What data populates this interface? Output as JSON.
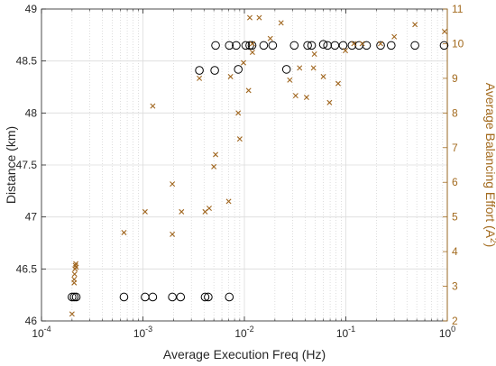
{
  "chart_data": {
    "type": "scatter",
    "title": "",
    "xlabel": "Average Execution Freq (Hz)",
    "xscale": "log",
    "xlim": [
      0.0001,
      1
    ],
    "xticks": [
      {
        "value": 0.0001,
        "base": "10",
        "exp": "-4"
      },
      {
        "value": 0.001,
        "base": "10",
        "exp": "-3"
      },
      {
        "value": 0.01,
        "base": "10",
        "exp": "-2"
      },
      {
        "value": 0.1,
        "base": "10",
        "exp": "-1"
      },
      {
        "value": 1,
        "base": "10",
        "exp": "0"
      }
    ],
    "ylabel_left": "Distance (km)",
    "ylim_left": [
      46,
      49
    ],
    "yticks_left": [
      "46",
      "46.5",
      "47",
      "47.5",
      "48",
      "48.5",
      "49"
    ],
    "ylabel_right": "Average Balancing Effort (A",
    "ylabel_right_sup": "2",
    "ylabel_right_suffix": ")",
    "ylim_right": [
      2,
      11
    ],
    "yticks_right": [
      "2",
      "3",
      "4",
      "5",
      "6",
      "7",
      "8",
      "9",
      "10",
      "11"
    ],
    "grid": true,
    "legend": "none",
    "series": [
      {
        "axis": "left",
        "marker": "circle",
        "color": "#000000",
        "points": [
          [
            0.0002,
            46.23
          ],
          [
            0.00021,
            46.23
          ],
          [
            0.00022,
            46.23
          ],
          [
            0.00065,
            46.23
          ],
          [
            0.00105,
            46.23
          ],
          [
            0.00125,
            46.23
          ],
          [
            0.00195,
            46.23
          ],
          [
            0.00235,
            46.23
          ],
          [
            0.0041,
            46.23
          ],
          [
            0.0044,
            46.23
          ],
          [
            0.0071,
            46.23
          ],
          [
            0.0036,
            48.41
          ],
          [
            0.0051,
            48.41
          ],
          [
            0.0087,
            48.42
          ],
          [
            0.026,
            48.42
          ],
          [
            0.0052,
            48.65
          ],
          [
            0.0071,
            48.65
          ],
          [
            0.0083,
            48.65
          ],
          [
            0.0103,
            48.65
          ],
          [
            0.0113,
            48.65
          ],
          [
            0.0119,
            48.65
          ],
          [
            0.0155,
            48.65
          ],
          [
            0.019,
            48.65
          ],
          [
            0.031,
            48.65
          ],
          [
            0.042,
            48.65
          ],
          [
            0.046,
            48.65
          ],
          [
            0.06,
            48.66
          ],
          [
            0.066,
            48.65
          ],
          [
            0.078,
            48.65
          ],
          [
            0.094,
            48.65
          ],
          [
            0.115,
            48.65
          ],
          [
            0.135,
            48.65
          ],
          [
            0.16,
            48.65
          ],
          [
            0.22,
            48.65
          ],
          [
            0.28,
            48.65
          ],
          [
            0.48,
            48.65
          ],
          [
            0.93,
            48.65
          ]
        ]
      },
      {
        "axis": "right",
        "marker": "x",
        "color": "#a0661f",
        "points": [
          [
            0.0002,
            2.2
          ],
          [
            0.00021,
            3.1
          ],
          [
            0.00021,
            3.2
          ],
          [
            0.000212,
            3.35
          ],
          [
            0.000214,
            3.5
          ],
          [
            0.000216,
            3.6
          ],
          [
            0.000218,
            3.65
          ],
          [
            0.00022,
            3.55
          ],
          [
            0.00065,
            4.55
          ],
          [
            0.00105,
            5.15
          ],
          [
            0.00125,
            8.2
          ],
          [
            0.00195,
            4.5
          ],
          [
            0.00195,
            5.95
          ],
          [
            0.0024,
            5.15
          ],
          [
            0.0036,
            9.0
          ],
          [
            0.0041,
            5.15
          ],
          [
            0.0045,
            5.25
          ],
          [
            0.005,
            6.45
          ],
          [
            0.0052,
            6.8
          ],
          [
            0.007,
            5.45
          ],
          [
            0.0073,
            9.05
          ],
          [
            0.0087,
            8.0
          ],
          [
            0.009,
            7.25
          ],
          [
            0.0098,
            9.45
          ],
          [
            0.011,
            8.65
          ],
          [
            0.0113,
            10.75
          ],
          [
            0.012,
            9.75
          ],
          [
            0.012,
            10.0
          ],
          [
            0.014,
            10.75
          ],
          [
            0.018,
            10.15
          ],
          [
            0.023,
            10.6
          ],
          [
            0.028,
            8.95
          ],
          [
            0.032,
            8.5
          ],
          [
            0.035,
            9.3
          ],
          [
            0.041,
            8.45
          ],
          [
            0.048,
            9.3
          ],
          [
            0.049,
            9.7
          ],
          [
            0.06,
            9.05
          ],
          [
            0.069,
            8.3
          ],
          [
            0.084,
            8.85
          ],
          [
            0.099,
            9.8
          ],
          [
            0.12,
            10.0
          ],
          [
            0.145,
            10.0
          ],
          [
            0.22,
            10.0
          ],
          [
            0.3,
            10.2
          ],
          [
            0.48,
            10.55
          ],
          [
            0.94,
            10.35
          ]
        ]
      }
    ]
  }
}
